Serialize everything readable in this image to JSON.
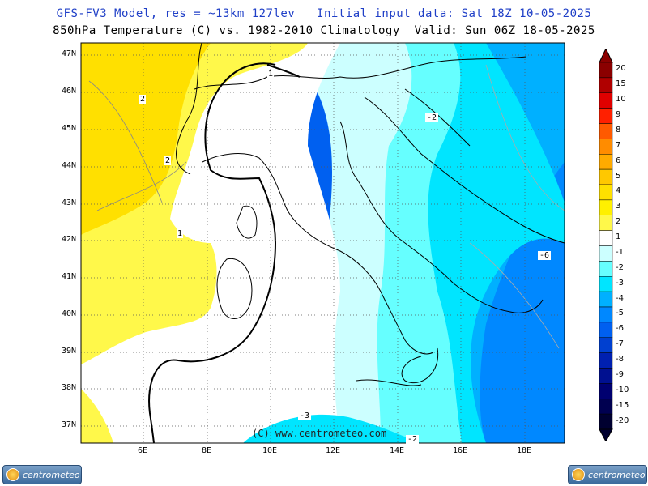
{
  "header": {
    "line1": "GFS-FV3 Model, res = ~13km 127lev   Initial input data: Sat 18Z 10-05-2025",
    "line2": "850hPa Temperature (C) vs. 1982-2010 Climatology  Valid: Sun 06Z 18-05-2025"
  },
  "map": {
    "lat_labels": [
      "47N",
      "46N",
      "45N",
      "44N",
      "43N",
      "42N",
      "41N",
      "40N",
      "39N",
      "38N",
      "37N"
    ],
    "lon_labels": [
      "6E",
      "8E",
      "10E",
      "12E",
      "14E",
      "16E",
      "18E"
    ],
    "contour_labels": [
      "2",
      "2",
      "1",
      "-2",
      "-6",
      "-3",
      "-2",
      "1"
    ],
    "watermark": "(C) www.centrometeo.com"
  },
  "legend": {
    "labels": [
      "20",
      "15",
      "10",
      "9",
      "8",
      "7",
      "6",
      "5",
      "4",
      "3",
      "2",
      "1",
      "-1",
      "-2",
      "-3",
      "-4",
      "-5",
      "-6",
      "-7",
      "-8",
      "-9",
      "-10",
      "-15",
      "-20"
    ],
    "colors": [
      "#8b0000",
      "#b00000",
      "#e00000",
      "#ff2000",
      "#ff5a00",
      "#ff8c00",
      "#ffab00",
      "#ffc800",
      "#ffe000",
      "#fff000",
      "#fff84a",
      "#ffffff",
      "#ccffff",
      "#66ffff",
      "#00e5ff",
      "#00b0ff",
      "#0088ff",
      "#0060f0",
      "#0040d0",
      "#0020b0",
      "#001090",
      "#000070",
      "#000050",
      "#000030"
    ]
  },
  "footer": {
    "logo_left": "centrometeo",
    "logo_right": "centrometeo"
  }
}
